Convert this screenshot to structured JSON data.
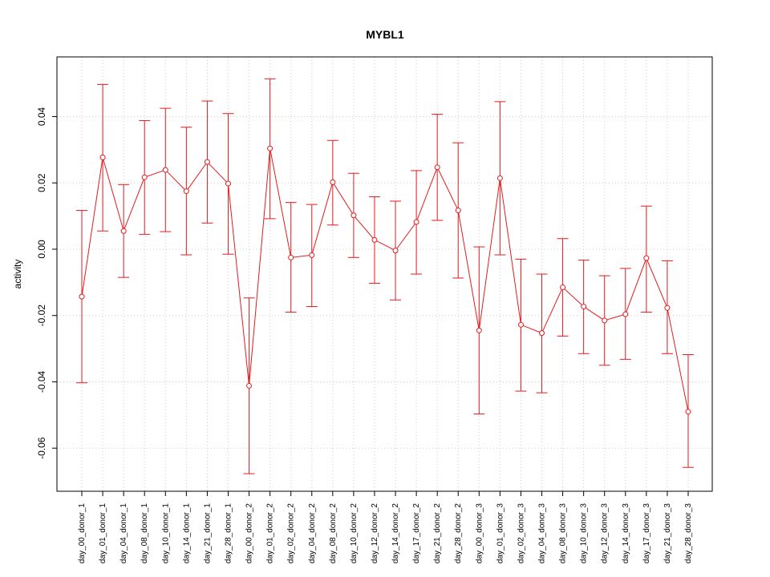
{
  "chart_data": {
    "type": "line",
    "title": "MYBL1",
    "xlabel": "",
    "ylabel": "activity",
    "ylim": [
      -0.073,
      0.058
    ],
    "y_ticks": [
      -0.06,
      -0.04,
      -0.02,
      0.0,
      0.02,
      0.04
    ],
    "y_tick_labels": [
      "-0.06",
      "-0.04",
      "-0.02",
      "0.00",
      "0.02",
      "0.04"
    ],
    "grid": true,
    "legend": "none",
    "colors": {
      "series": "#e41a1c",
      "grid": "#cccccc",
      "axis": "#000000"
    },
    "categories": [
      "day_00_donor_1",
      "day_01_donor_1",
      "day_04_donor_1",
      "day_08_donor_1",
      "day_10_donor_1",
      "day_14_donor_1",
      "day_21_donor_1",
      "day_28_donor_1",
      "day_00_donor_2",
      "day_01_donor_2",
      "day_02_donor_2",
      "day_04_donor_2",
      "day_08_donor_2",
      "day_10_donor_2",
      "day_12_donor_2",
      "day_14_donor_2",
      "day_17_donor_2",
      "day_21_donor_2",
      "day_28_donor_2",
      "day_00_donor_3",
      "day_01_donor_3",
      "day_02_donor_3",
      "day_04_donor_3",
      "day_08_donor_3",
      "day_10_donor_3",
      "day_12_donor_3",
      "day_14_donor_3",
      "day_17_donor_3",
      "day_21_donor_3",
      "day_28_donor_3"
    ],
    "series": [
      {
        "values": [
          -0.0143,
          0.0277,
          0.0055,
          0.0217,
          0.0239,
          0.0175,
          0.0263,
          0.0198,
          -0.0412,
          0.0304,
          -0.0025,
          -0.0018,
          0.0202,
          0.0102,
          0.0028,
          -0.0004,
          0.0082,
          0.0247,
          0.0117,
          -0.0245,
          0.0214,
          -0.0228,
          -0.0253,
          -0.0115,
          -0.0173,
          -0.0215,
          -0.0196,
          -0.0027,
          -0.0177,
          -0.049
        ],
        "lower": [
          -0.0403,
          0.0055,
          -0.0085,
          0.0045,
          0.0053,
          -0.0017,
          0.0079,
          -0.0015,
          -0.0677,
          0.0092,
          -0.019,
          -0.0173,
          0.0073,
          -0.0025,
          -0.0103,
          -0.0153,
          -0.0075,
          0.0087,
          -0.0087,
          -0.0497,
          -0.0017,
          -0.0428,
          -0.0433,
          -0.0262,
          -0.0315,
          -0.035,
          -0.0332,
          -0.019,
          -0.0315,
          -0.0658
        ],
        "upper": [
          0.0117,
          0.0497,
          0.0195,
          0.0388,
          0.0425,
          0.0368,
          0.0447,
          0.0409,
          -0.0147,
          0.0514,
          0.0141,
          0.0135,
          0.0328,
          0.0229,
          0.0158,
          0.0145,
          0.0237,
          0.0407,
          0.0321,
          0.0007,
          0.0445,
          -0.003,
          -0.0075,
          0.0032,
          -0.0033,
          -0.008,
          -0.0058,
          0.013,
          -0.0035,
          -0.0318
        ]
      }
    ]
  }
}
